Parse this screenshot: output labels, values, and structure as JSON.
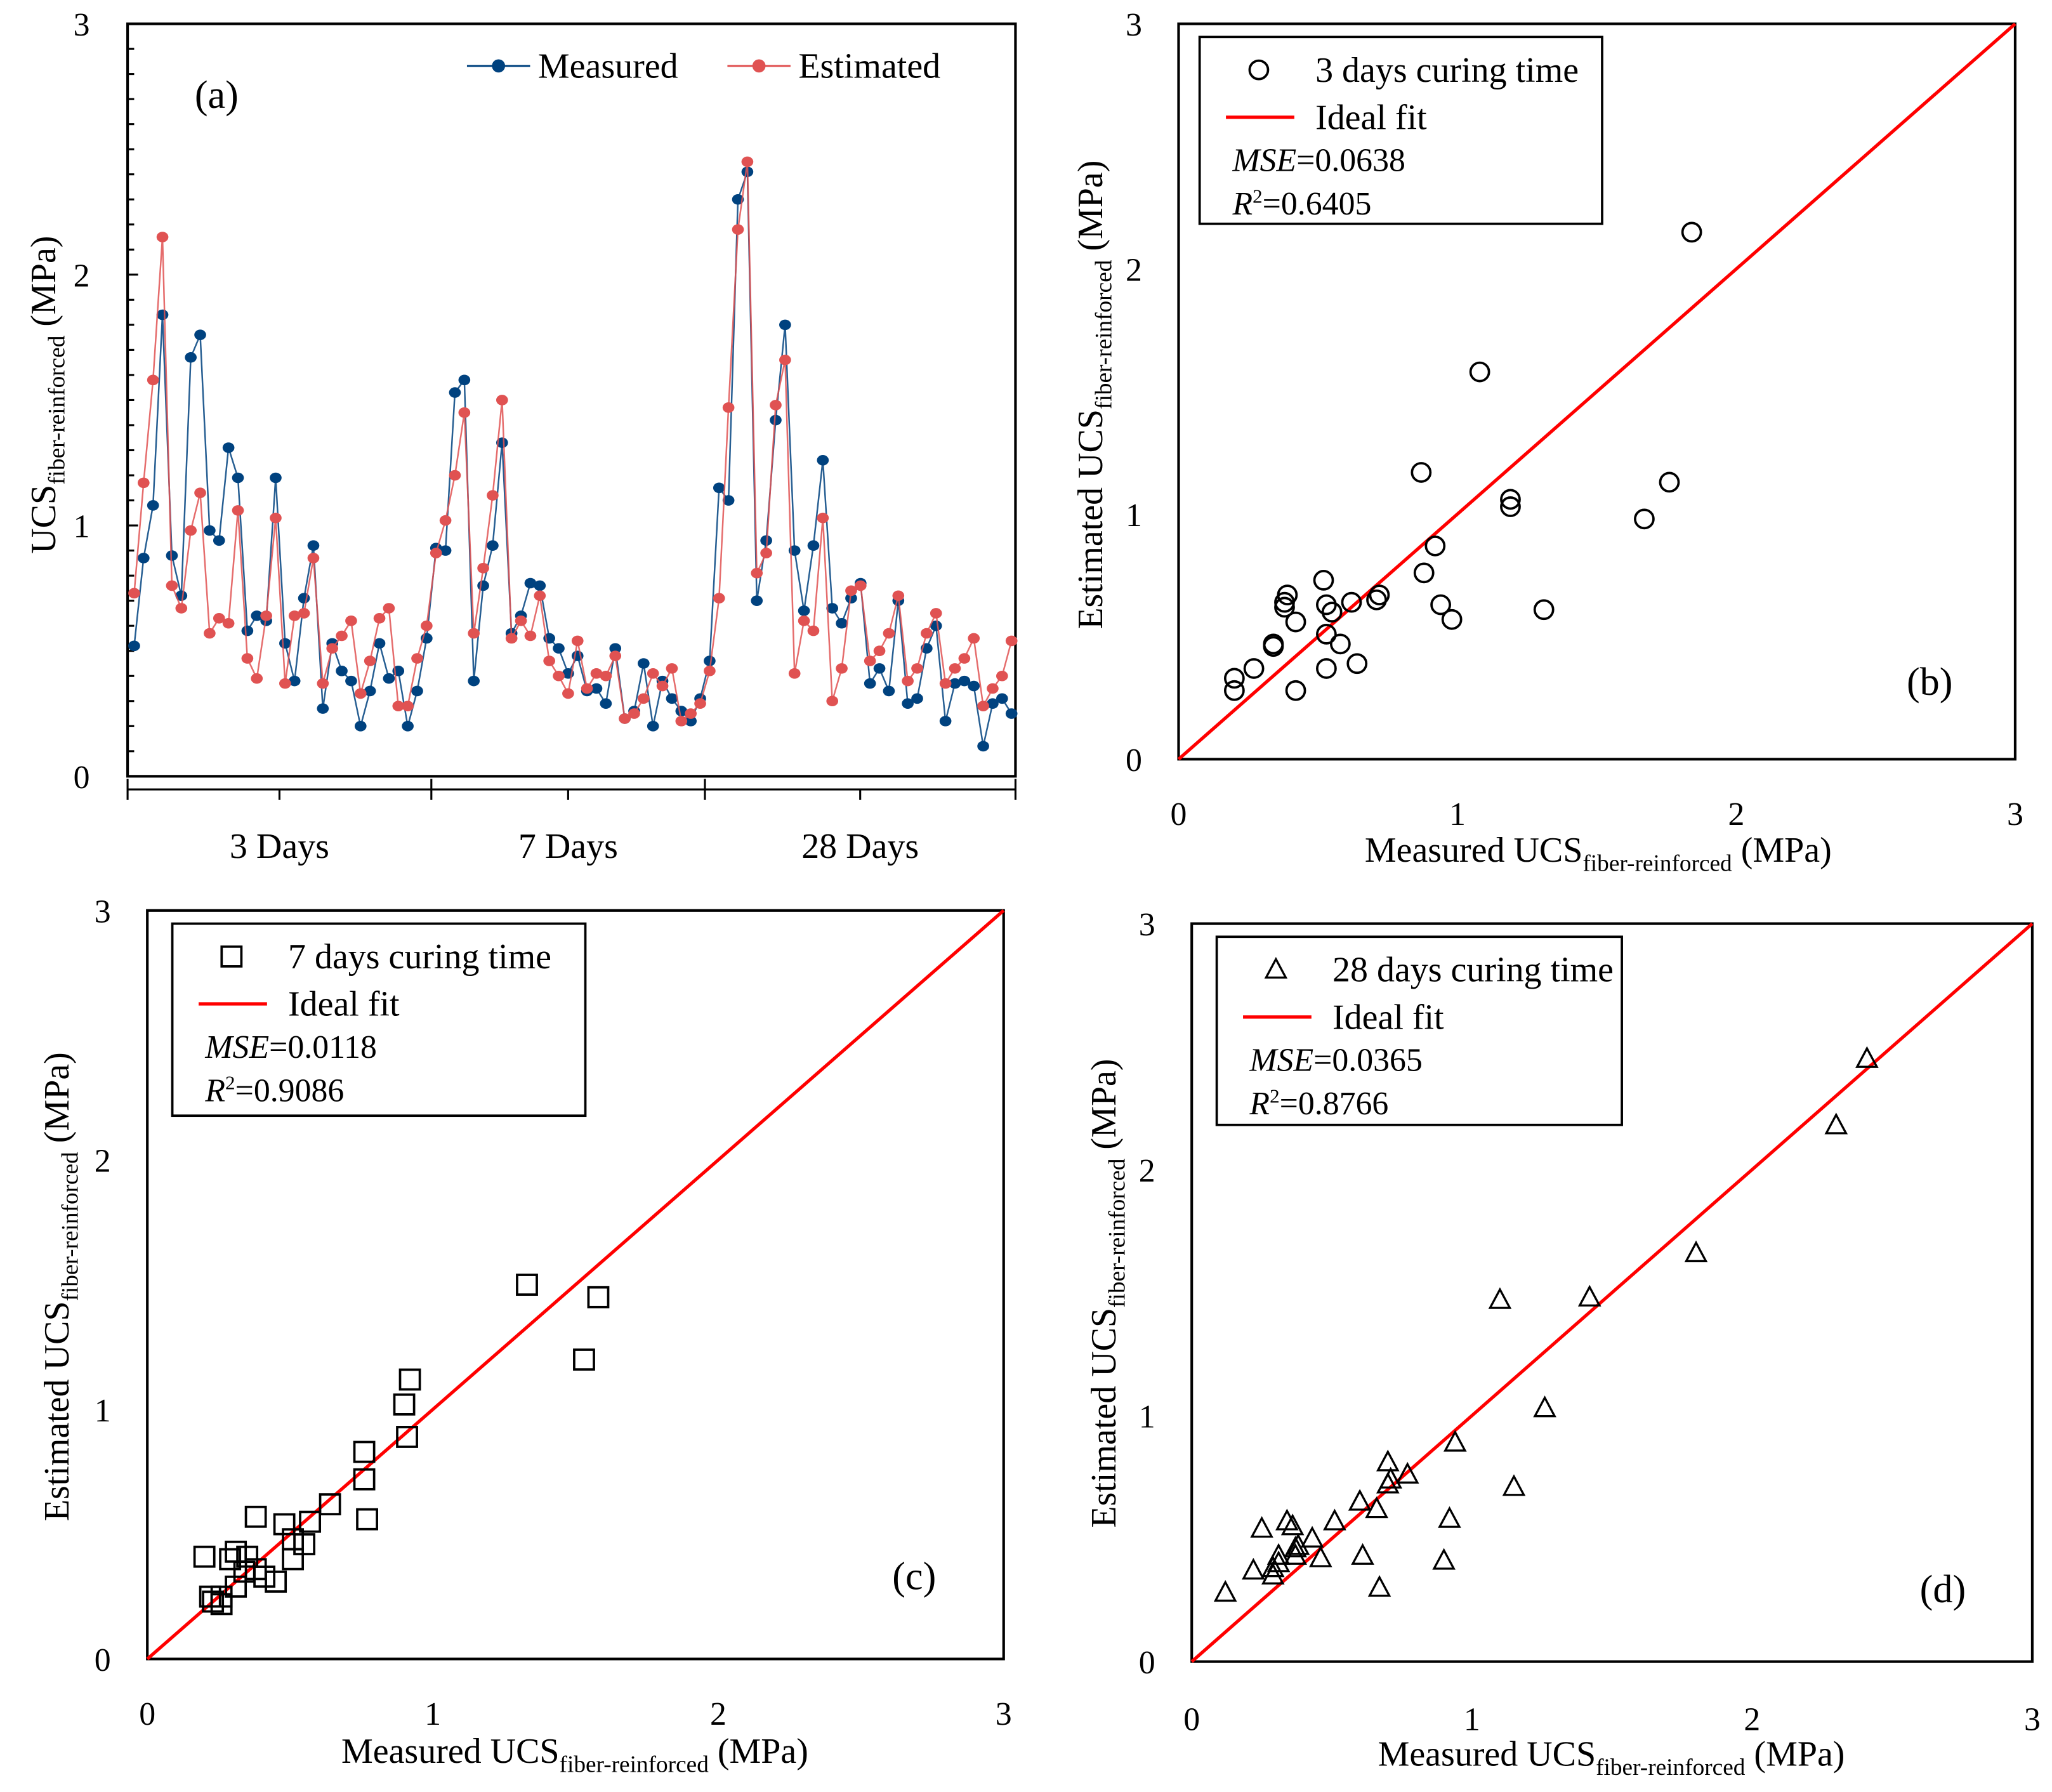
{
  "chart_data": [
    {
      "type": "line",
      "panel_label": "(a)",
      "ylabel": {
        "main": "UCS",
        "sub": "fiber-reinforced",
        "unit": " (MPa)"
      },
      "ylim": [
        0,
        3
      ],
      "yticks": [
        "0",
        "1",
        "2",
        "3"
      ],
      "groups": [
        "3 Days",
        "7 Days",
        "28 Days"
      ],
      "group_sizes": [
        32,
        29,
        33
      ],
      "legend": {
        "placement": "top-right",
        "entries": [
          "Measured",
          "Estimated"
        ]
      },
      "colors": {
        "Measured": "#00427f",
        "Estimated": "#e05252"
      },
      "series": [
        {
          "name": "Measured",
          "values": [
            0.52,
            0.87,
            1.08,
            1.84,
            0.88,
            0.72,
            1.67,
            1.76,
            0.98,
            0.94,
            1.31,
            1.19,
            0.58,
            0.64,
            0.62,
            1.19,
            0.53,
            0.38,
            0.71,
            0.92,
            0.27,
            0.53,
            0.42,
            0.38,
            0.2,
            0.34,
            0.53,
            0.39,
            0.42,
            0.2,
            0.34,
            0.55,
            0.91,
            0.9,
            1.53,
            1.58,
            0.38,
            0.76,
            0.92,
            1.33,
            0.57,
            0.64,
            0.77,
            0.76,
            0.55,
            0.51,
            0.41,
            0.48,
            0.34,
            0.35,
            0.29,
            0.51,
            0.23,
            0.26,
            0.45,
            0.2,
            0.38,
            0.31,
            0.26,
            0.22,
            0.31,
            0.46,
            1.15,
            1.1,
            2.3,
            2.41,
            0.7,
            0.94,
            1.42,
            1.8,
            0.9,
            0.66,
            0.92,
            1.26,
            0.67,
            0.61,
            0.71,
            0.77,
            0.37,
            0.43,
            0.34,
            0.7,
            0.29,
            0.31,
            0.51,
            0.6,
            0.22,
            0.37,
            0.38,
            0.36,
            0.12,
            0.29,
            0.31,
            0.25
          ]
        },
        {
          "name": "Estimated",
          "values": [
            0.73,
            1.17,
            1.58,
            2.15,
            0.76,
            0.67,
            0.98,
            1.13,
            0.57,
            0.63,
            0.61,
            1.06,
            0.47,
            0.39,
            0.64,
            1.03,
            0.37,
            0.64,
            0.65,
            0.87,
            0.37,
            0.51,
            0.56,
            0.62,
            0.33,
            0.46,
            0.63,
            0.67,
            0.28,
            0.28,
            0.47,
            0.6,
            0.89,
            1.02,
            1.2,
            1.45,
            0.57,
            0.83,
            1.12,
            1.5,
            0.55,
            0.62,
            0.56,
            0.72,
            0.46,
            0.4,
            0.33,
            0.54,
            0.35,
            0.41,
            0.4,
            0.48,
            0.23,
            0.25,
            0.31,
            0.41,
            0.36,
            0.43,
            0.22,
            0.25,
            0.29,
            0.42,
            0.71,
            1.47,
            2.18,
            2.45,
            0.81,
            0.89,
            1.48,
            1.66,
            0.41,
            0.62,
            0.58,
            1.03,
            0.3,
            0.43,
            0.74,
            0.76,
            0.46,
            0.5,
            0.57,
            0.72,
            0.38,
            0.43,
            0.57,
            0.65,
            0.37,
            0.43,
            0.47,
            0.55,
            0.28,
            0.35,
            0.4,
            0.54
          ]
        }
      ]
    },
    {
      "type": "scatter",
      "panel_label": "(b)",
      "marker": "circle",
      "group_index": 0,
      "xlabel": {
        "main": "Measured UCS",
        "sub": "fiber-reinforced",
        "unit": " (MPa)"
      },
      "ylabel": {
        "main": "Estimated UCS",
        "sub": "fiber-reinforced",
        "unit": " (MPa)"
      },
      "xlim": [
        0,
        3
      ],
      "ylim": [
        0,
        3
      ],
      "ticks": [
        "0",
        "1",
        "2",
        "3"
      ],
      "legend": {
        "placement": "top-left",
        "series_label": "3 days curing time",
        "fit_label": "Ideal fit",
        "mse_name": "MSE",
        "mse_value": "=0.0638",
        "r2_name": "R",
        "r2_sup": "2",
        "r2_value": "=0.6405"
      }
    },
    {
      "type": "scatter",
      "panel_label": "(c)",
      "marker": "square",
      "group_index": 1,
      "xlabel": {
        "main": "Measured UCS",
        "sub": "fiber-reinforced",
        "unit": " (MPa)"
      },
      "ylabel": {
        "main": "Estimated UCS",
        "sub": "fiber-reinforced",
        "unit": " (MPa)"
      },
      "xlim": [
        0,
        3
      ],
      "ylim": [
        0,
        3
      ],
      "ticks": [
        "0",
        "1",
        "2",
        "3"
      ],
      "legend": {
        "placement": "top-left",
        "series_label": "7 days curing time",
        "fit_label": "Ideal fit",
        "mse_name": "MSE",
        "mse_value": "=0.0118",
        "r2_name": "R",
        "r2_sup": "2",
        "r2_value": "=0.9086"
      }
    },
    {
      "type": "scatter",
      "panel_label": "(d)",
      "marker": "triangle",
      "group_index": 2,
      "xlabel": {
        "main": "Measured UCS",
        "sub": "fiber-reinforced",
        "unit": " (MPa)"
      },
      "ylabel": {
        "main": "Estimated UCS",
        "sub": "fiber-reinforced",
        "unit": " (MPa)"
      },
      "xlim": [
        0,
        3
      ],
      "ylim": [
        0,
        3
      ],
      "ticks": [
        "0",
        "1",
        "2",
        "3"
      ],
      "legend": {
        "placement": "top-left",
        "series_label": "28 days curing time",
        "fit_label": "Ideal fit",
        "mse_name": "MSE",
        "mse_value": "=0.0365",
        "r2_name": "R",
        "r2_sup": "2",
        "r2_value": "=0.8766"
      }
    }
  ],
  "ideal_fit_color": "#ff0000"
}
